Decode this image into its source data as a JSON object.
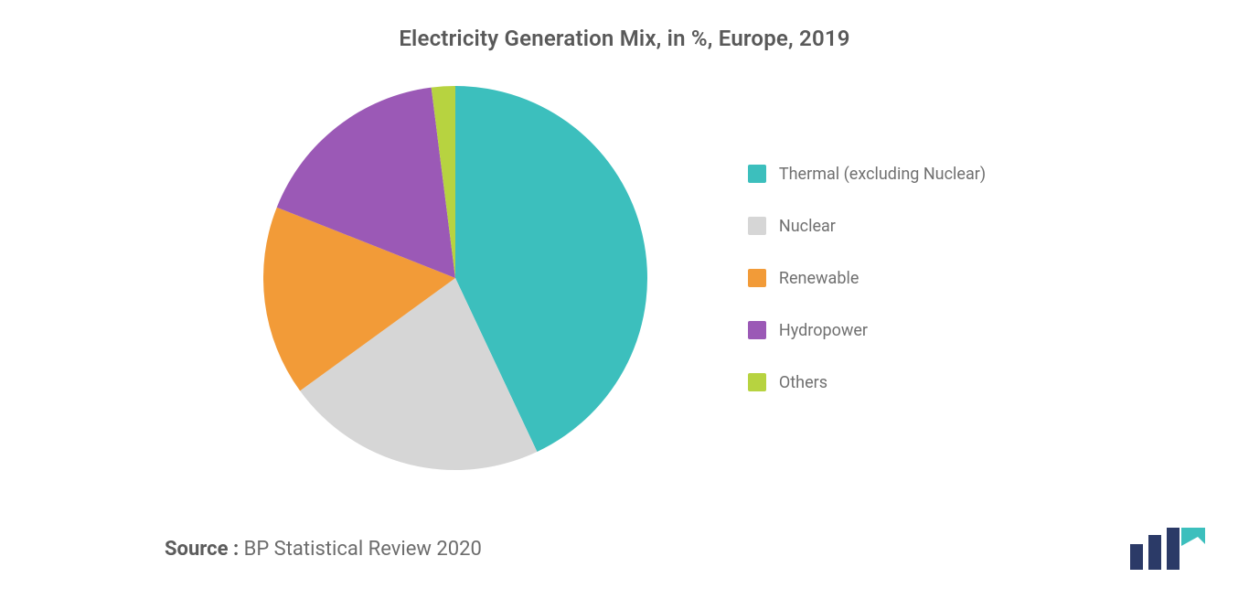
{
  "chart": {
    "type": "pie",
    "title": "Electricity Generation Mix, in %, Europe, 2019",
    "title_fontsize": 24,
    "title_color": "#595959",
    "background_color": "#ffffff",
    "radius": 210,
    "start_angle_deg": 0,
    "inner_radius": 0,
    "series": [
      {
        "label": "Thermal (excluding Nuclear)",
        "value": 43,
        "color": "#3cbfbd"
      },
      {
        "label": "Nuclear",
        "value": 22,
        "color": "#d6d6d6"
      },
      {
        "label": "Renewable",
        "value": 16,
        "color": "#f29b38"
      },
      {
        "label": "Hydropower",
        "value": 17,
        "color": "#9b59b6"
      },
      {
        "label": "Others",
        "value": 2,
        "color": "#b7d340"
      }
    ],
    "legend": {
      "position": "right",
      "fontsize": 18,
      "font_color": "#707070",
      "swatch_size": 20,
      "item_gap": 36
    }
  },
  "source": {
    "label": "Source :",
    "text": "BP Statistical Review 2020",
    "fontsize": 22,
    "label_weight": 700,
    "color": "#6c6c6c"
  },
  "logo": {
    "name": "mordor-intelligence-logo",
    "bar_color": "#2b3a67",
    "accent_color": "#3cbfbd"
  }
}
